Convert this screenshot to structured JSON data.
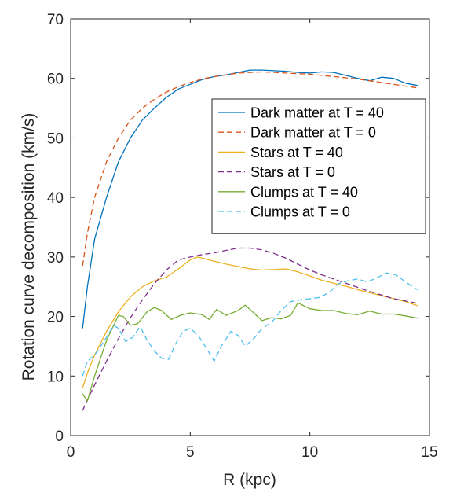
{
  "chart_data": {
    "type": "line",
    "xlabel": "R (kpc)",
    "ylabel": "Rotation curve decomposition (km/s)",
    "xlim": [
      0,
      15
    ],
    "ylim": [
      0,
      70
    ],
    "xticks": [
      "0",
      "5",
      "10",
      "15"
    ],
    "yticks": [
      "0",
      "10",
      "20",
      "30",
      "40",
      "50",
      "60",
      "70"
    ],
    "grid": false,
    "legend_position": "upper-right",
    "series": [
      {
        "name": "Dark matter at T = 40",
        "color": "#0072BD",
        "dash": "solid",
        "x": [
          0.5,
          0.7,
          1.0,
          1.5,
          2.0,
          2.5,
          3.0,
          3.5,
          4.0,
          4.5,
          5.0,
          5.5,
          6.0,
          6.5,
          7.0,
          7.5,
          8.0,
          8.5,
          9.0,
          9.5,
          10.0,
          10.5,
          11.0,
          11.5,
          12.0,
          12.5,
          13.0,
          13.5,
          14.0,
          14.5
        ],
        "y": [
          18,
          25,
          33,
          40,
          46,
          50,
          53,
          55,
          56.8,
          58.2,
          59,
          59.8,
          60.3,
          60.6,
          61,
          61.4,
          61.4,
          61.3,
          61.2,
          61.0,
          60.9,
          61.1,
          61.0,
          60.5,
          60.0,
          59.6,
          60.2,
          60.0,
          59.2,
          58.8
        ]
      },
      {
        "name": "Dark matter at T = 0",
        "color": "#D95319",
        "dash": "dashed",
        "x": [
          0.5,
          0.7,
          1.0,
          1.5,
          2.0,
          2.5,
          3.0,
          3.5,
          4.0,
          4.5,
          5.0,
          5.5,
          6.0,
          6.5,
          7.0,
          7.5,
          8.0,
          8.5,
          9.0,
          9.5,
          10.0,
          10.5,
          11.0,
          11.5,
          12.0,
          12.5,
          13.0,
          13.5,
          14.0,
          14.5
        ],
        "y": [
          28.5,
          34,
          40,
          46,
          50,
          53,
          55,
          56.5,
          57.7,
          58.6,
          59.3,
          59.9,
          60.3,
          60.6,
          60.9,
          61.0,
          61.1,
          61.0,
          60.9,
          60.8,
          60.7,
          60.5,
          60.3,
          60.1,
          59.9,
          59.6,
          59.3,
          59.0,
          58.7,
          58.4
        ]
      },
      {
        "name": "Stars at T = 40",
        "color": "#EDB120",
        "dash": "solid",
        "x": [
          0.5,
          0.7,
          1.0,
          1.5,
          2.0,
          2.5,
          3.0,
          3.5,
          4.0,
          4.5,
          5.0,
          5.3,
          5.5,
          6.0,
          6.5,
          7.0,
          7.5,
          8.0,
          8.5,
          9.0,
          9.5,
          10.0,
          10.5,
          11.0,
          11.5,
          12.0,
          12.5,
          13.0,
          13.5,
          14.0,
          14.5
        ],
        "y": [
          8,
          10.5,
          13.5,
          17.5,
          20.8,
          23.3,
          25.0,
          26.0,
          26.6,
          28.0,
          29.5,
          30.0,
          29.8,
          29.3,
          28.8,
          28.4,
          28.0,
          27.8,
          27.9,
          28.0,
          27.5,
          26.8,
          26.1,
          25.6,
          25.1,
          24.5,
          24.0,
          23.5,
          23.0,
          22.5,
          21.8
        ]
      },
      {
        "name": "Stars at T = 0",
        "color": "#7E2F8E",
        "dash": "dashed",
        "x": [
          0.5,
          0.7,
          1.0,
          1.5,
          2.0,
          2.5,
          3.0,
          3.5,
          4.0,
          4.5,
          5.0,
          5.5,
          6.0,
          6.5,
          7.0,
          7.5,
          8.0,
          8.5,
          9.0,
          9.5,
          10.0,
          10.5,
          11.0,
          11.5,
          12.0,
          12.5,
          13.0,
          13.5,
          14.0,
          14.5
        ],
        "y": [
          4.2,
          6.0,
          8.5,
          12.5,
          16.3,
          19.8,
          22.8,
          25.5,
          27.8,
          29.5,
          30.0,
          30.4,
          30.7,
          31.1,
          31.5,
          31.5,
          31.2,
          30.6,
          29.8,
          28.8,
          27.8,
          27.0,
          26.3,
          25.6,
          24.9,
          24.2,
          23.6,
          23.0,
          22.6,
          22.2
        ]
      },
      {
        "name": "Clumps at T = 40",
        "color": "#77AC30",
        "dash": "solid",
        "x": [
          0.5,
          0.7,
          1.0,
          1.5,
          2.0,
          2.2,
          2.5,
          2.8,
          3.2,
          3.5,
          3.8,
          4.2,
          4.6,
          5.0,
          5.5,
          5.8,
          6.1,
          6.5,
          7.0,
          7.3,
          7.6,
          8.0,
          8.4,
          8.8,
          9.2,
          9.5,
          10.0,
          10.5,
          11.0,
          11.5,
          12.0,
          12.5,
          13.0,
          13.5,
          14.0,
          14.5
        ],
        "y": [
          7.0,
          5.8,
          10.0,
          16.0,
          20.2,
          20.0,
          18.5,
          18.8,
          20.8,
          21.5,
          21.0,
          19.5,
          20.2,
          20.6,
          20.3,
          19.5,
          21.2,
          20.2,
          21.0,
          21.9,
          20.8,
          19.3,
          19.8,
          19.6,
          20.2,
          22.3,
          21.3,
          21.0,
          21.0,
          20.5,
          20.3,
          20.9,
          20.4,
          20.4,
          20.1,
          19.7
        ]
      },
      {
        "name": "Clumps at T = 0",
        "color": "#4DBEEE",
        "dash": "dashed",
        "x": [
          0.5,
          0.7,
          1.0,
          1.5,
          1.8,
          2.0,
          2.3,
          2.6,
          2.9,
          3.2,
          3.5,
          3.8,
          4.1,
          4.4,
          4.7,
          5.0,
          5.3,
          5.7,
          6.0,
          6.3,
          6.7,
          7.0,
          7.3,
          7.7,
          8.0,
          8.4,
          8.8,
          9.2,
          9.6,
          10.0,
          10.4,
          10.8,
          11.2,
          11.6,
          12.0,
          12.4,
          12.8,
          13.2,
          13.6,
          14.0,
          14.5
        ],
        "y": [
          10.0,
          12.5,
          13.5,
          16.5,
          18.5,
          18.0,
          15.8,
          16.5,
          18.3,
          16.0,
          14.2,
          13.0,
          12.8,
          15.5,
          17.5,
          18.0,
          17.0,
          14.5,
          12.5,
          15.0,
          17.5,
          16.8,
          15.0,
          16.5,
          18.0,
          19.0,
          21.0,
          22.5,
          22.8,
          23.0,
          23.2,
          24.0,
          25.5,
          26.0,
          26.3,
          25.8,
          26.5,
          27.3,
          27.0,
          25.8,
          24.5
        ]
      }
    ]
  }
}
